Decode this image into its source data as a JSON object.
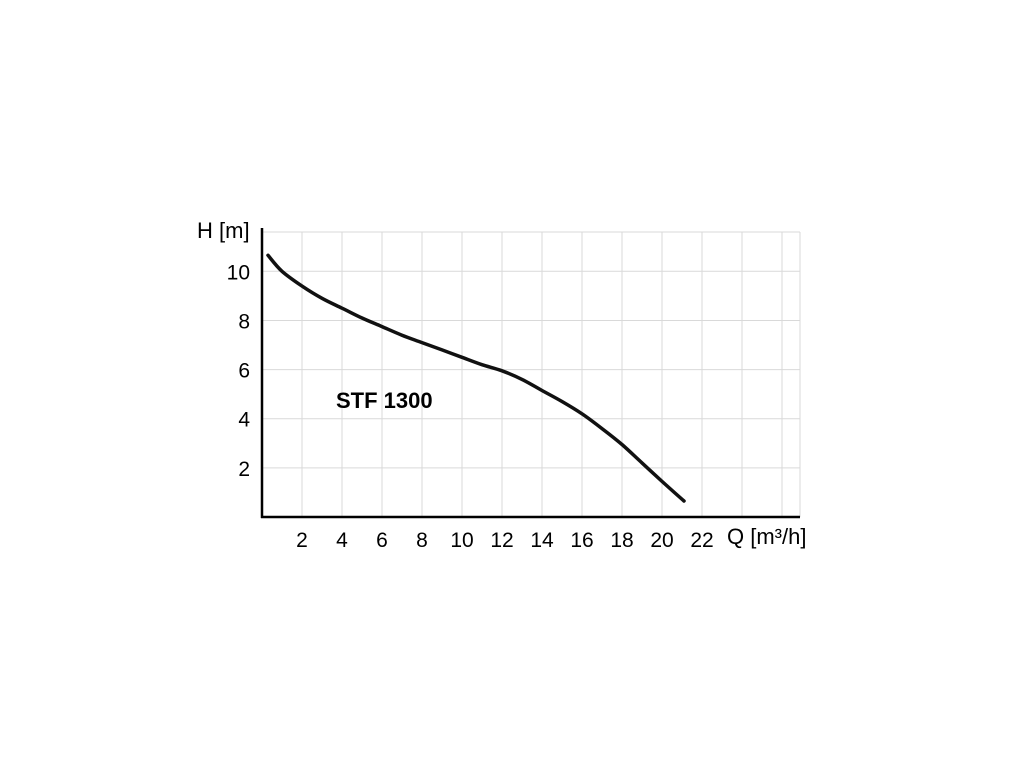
{
  "chart_data": {
    "type": "line",
    "title": "STF 1300",
    "xlabel": "Q [m³/h]",
    "ylabel": "H [m]",
    "xlim": [
      0,
      26.9
    ],
    "ylim": [
      0,
      11.6
    ],
    "x_ticks": [
      2,
      4,
      6,
      8,
      10,
      12,
      14,
      16,
      18,
      20,
      22
    ],
    "y_ticks": [
      2,
      4,
      6,
      8,
      10
    ],
    "x_gridlines": [
      2,
      4,
      6,
      8,
      10,
      12,
      14,
      16,
      18,
      20,
      22,
      24,
      26
    ],
    "y_gridlines": [
      2,
      4,
      6,
      8,
      10
    ],
    "grid": true,
    "legend": "none",
    "series": [
      {
        "name": "STF 1300 pump curve",
        "x": [
          0.3,
          1,
          2,
          3,
          4,
          5,
          6,
          7,
          8,
          9,
          10,
          11,
          12,
          13,
          14,
          15,
          16,
          17,
          18,
          19,
          20,
          21.1
        ],
        "y": [
          10.65,
          10.0,
          9.4,
          8.9,
          8.5,
          8.1,
          7.75,
          7.4,
          7.1,
          6.8,
          6.5,
          6.2,
          5.95,
          5.6,
          5.15,
          4.7,
          4.2,
          3.6,
          2.95,
          2.2,
          1.45,
          0.65
        ],
        "color": "#111111",
        "width": 3.5
      }
    ],
    "colors": {
      "grid": "#d9d9d9",
      "axis": "#000000",
      "text": "#000000",
      "background": "#ffffff"
    }
  }
}
